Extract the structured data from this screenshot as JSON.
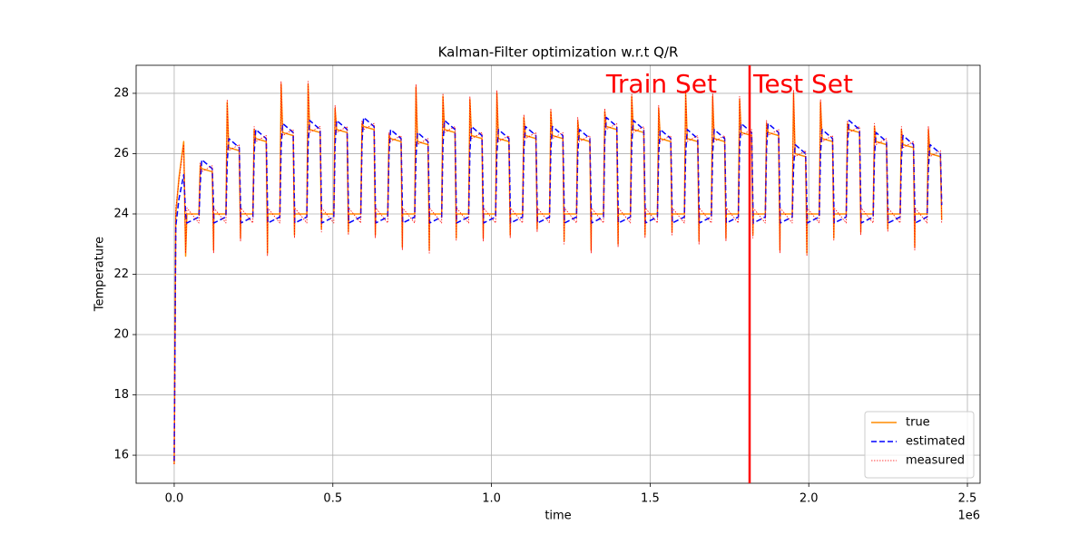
{
  "chart_data": {
    "type": "line",
    "title": "Kalman-Filter optimization w.r.t Q/R",
    "x_label": "time",
    "y_label": "Temperature",
    "x_offset_label": "1e6",
    "xlim": [
      -120000,
      2540000
    ],
    "ylim": [
      15.07,
      28.93
    ],
    "xticks": [
      {
        "value": 0,
        "label": "0.0"
      },
      {
        "value": 500000,
        "label": "0.5"
      },
      {
        "value": 1000000,
        "label": "1.0"
      },
      {
        "value": 1500000,
        "label": "1.5"
      },
      {
        "value": 2000000,
        "label": "2.0"
      },
      {
        "value": 2500000,
        "label": "2.5"
      }
    ],
    "yticks": [
      16,
      18,
      20,
      22,
      24,
      26,
      28
    ],
    "grid": true,
    "legend_position": "lower right",
    "split_x": 1813500,
    "split_color": "#ff0000",
    "annotations": [
      "Train Set",
      "Test Set"
    ],
    "x": [
      0,
      5000,
      15000,
      30000,
      36000,
      40000,
      78000,
      82000,
      87000,
      120000,
      124000,
      125000,
      163000,
      167000,
      172000,
      205000,
      209000,
      210000,
      248000,
      252000,
      257000,
      290000,
      294000,
      295000,
      333000,
      337000,
      342000,
      375000,
      379000,
      380000,
      418000,
      422000,
      427000,
      460000,
      464000,
      465000,
      503000,
      507000,
      512000,
      545000,
      549000,
      550000,
      588000,
      592000,
      597000,
      630000,
      634000,
      635000,
      673000,
      677000,
      682000,
      715000,
      719000,
      720000,
      758000,
      762000,
      767000,
      800000,
      804000,
      805000,
      843000,
      847000,
      852000,
      885000,
      889000,
      890000,
      928000,
      932000,
      937000,
      970000,
      974000,
      975000,
      1013000,
      1017000,
      1022000,
      1055000,
      1059000,
      1060000,
      1098000,
      1102000,
      1107000,
      1140000,
      1144000,
      1145000,
      1183000,
      1187000,
      1192000,
      1225000,
      1229000,
      1230000,
      1268000,
      1272000,
      1277000,
      1310000,
      1314000,
      1315000,
      1353000,
      1357000,
      1362000,
      1395000,
      1399000,
      1400000,
      1438000,
      1442000,
      1447000,
      1480000,
      1484000,
      1485000,
      1523000,
      1527000,
      1532000,
      1565000,
      1569000,
      1570000,
      1608000,
      1612000,
      1617000,
      1650000,
      1654000,
      1655000,
      1693000,
      1697000,
      1702000,
      1735000,
      1739000,
      1740000,
      1778000,
      1782000,
      1787000,
      1820000,
      1824000,
      1825000,
      1863000,
      1867000,
      1872000,
      1905000,
      1909000,
      1910000,
      1948000,
      1952000,
      1957000,
      1990000,
      1994000,
      1995000,
      2033000,
      2037000,
      2042000,
      2075000,
      2079000,
      2080000,
      2118000,
      2122000,
      2127000,
      2160000,
      2164000,
      2165000,
      2203000,
      2207000,
      2212000,
      2245000,
      2249000,
      2250000,
      2288000,
      2292000,
      2297000,
      2330000,
      2334000,
      2335000,
      2373000,
      2377000,
      2382000,
      2415000,
      2419000
    ],
    "series": [
      {
        "name": "true",
        "color": "#ff8c00",
        "linestyle": "solid",
        "values": [
          15.7,
          24.0,
          25.2,
          26.4,
          22.6,
          24.0,
          24.0,
          25.6,
          25.5,
          25.4,
          22.8,
          24.0,
          24.0,
          27.7,
          26.2,
          26.1,
          23.2,
          24.0,
          24.0,
          26.8,
          26.5,
          26.4,
          22.7,
          24.0,
          24.0,
          28.3,
          26.7,
          26.6,
          23.3,
          24.0,
          24.0,
          28.3,
          26.8,
          26.7,
          23.5,
          24.0,
          24.0,
          27.5,
          26.8,
          26.7,
          23.4,
          24.0,
          24.0,
          27.0,
          26.9,
          26.8,
          23.3,
          24.0,
          24.0,
          26.6,
          26.5,
          26.4,
          22.9,
          24.0,
          24.0,
          28.2,
          26.4,
          26.3,
          22.8,
          24.0,
          24.0,
          27.9,
          26.8,
          26.7,
          23.2,
          24.0,
          24.0,
          27.8,
          26.6,
          26.5,
          23.2,
          24.0,
          24.0,
          28.0,
          26.5,
          26.4,
          23.3,
          24.0,
          24.0,
          27.2,
          26.6,
          26.5,
          23.5,
          24.0,
          24.0,
          27.4,
          26.6,
          26.5,
          23.1,
          24.0,
          24.0,
          27.1,
          26.5,
          26.4,
          22.8,
          24.0,
          24.0,
          27.4,
          26.9,
          26.8,
          23.0,
          24.0,
          24.0,
          27.9,
          26.8,
          26.7,
          23.3,
          24.0,
          24.0,
          27.5,
          26.5,
          26.4,
          23.4,
          24.0,
          24.0,
          28.0,
          26.5,
          26.4,
          23.1,
          24.0,
          24.0,
          27.9,
          26.5,
          26.4,
          23.2,
          24.0,
          24.0,
          27.8,
          26.7,
          26.6,
          23.3,
          24.0,
          24.0,
          27.0,
          26.7,
          26.6,
          22.8,
          24.0,
          24.0,
          28.0,
          26.0,
          25.9,
          22.7,
          24.0,
          24.0,
          27.7,
          26.5,
          26.4,
          23.2,
          24.0,
          24.0,
          27.0,
          26.8,
          26.7,
          23.4,
          24.0,
          24.0,
          26.9,
          26.4,
          26.3,
          23.5,
          24.0,
          24.0,
          26.8,
          26.3,
          26.2,
          22.9,
          24.0,
          24.0,
          26.8,
          26.0,
          25.9,
          23.8
        ]
      },
      {
        "name": "estimated",
        "color": "#0000ff",
        "linestyle": "dashed",
        "values": [
          15.8,
          23.6,
          24.5,
          25.3,
          24.0,
          23.7,
          23.9,
          25.0,
          25.8,
          25.5,
          24.3,
          23.7,
          23.9,
          25.7,
          26.5,
          26.2,
          24.3,
          23.7,
          23.9,
          26.0,
          26.8,
          26.5,
          24.3,
          23.7,
          23.9,
          26.2,
          27.0,
          26.7,
          24.3,
          23.7,
          23.9,
          26.3,
          27.1,
          26.8,
          24.3,
          23.7,
          23.9,
          26.3,
          27.1,
          26.8,
          24.3,
          23.7,
          23.9,
          26.4,
          27.2,
          26.9,
          24.3,
          23.7,
          23.9,
          26.0,
          26.8,
          26.5,
          24.3,
          23.7,
          23.9,
          25.9,
          26.7,
          26.4,
          24.3,
          23.7,
          23.9,
          26.3,
          27.1,
          26.8,
          24.3,
          23.7,
          23.9,
          26.1,
          26.9,
          26.6,
          24.3,
          23.7,
          23.9,
          26.0,
          26.8,
          26.5,
          24.3,
          23.7,
          23.9,
          26.1,
          26.9,
          26.6,
          24.3,
          23.7,
          23.9,
          26.1,
          26.9,
          26.6,
          24.3,
          23.7,
          23.9,
          26.0,
          26.8,
          26.5,
          24.3,
          23.7,
          23.9,
          26.4,
          27.2,
          26.9,
          24.3,
          23.7,
          23.9,
          26.3,
          27.1,
          26.8,
          24.3,
          23.7,
          23.9,
          26.0,
          26.8,
          26.5,
          24.3,
          23.7,
          23.9,
          26.0,
          26.8,
          26.5,
          24.3,
          23.7,
          23.9,
          26.0,
          26.8,
          26.5,
          24.3,
          23.7,
          23.9,
          26.2,
          27.0,
          26.7,
          24.3,
          23.7,
          23.9,
          26.2,
          27.0,
          26.7,
          24.3,
          23.7,
          23.9,
          25.5,
          26.3,
          26.0,
          24.3,
          23.7,
          23.9,
          26.0,
          26.8,
          26.5,
          24.3,
          23.7,
          23.9,
          26.3,
          27.1,
          26.8,
          24.3,
          23.7,
          23.9,
          25.9,
          26.7,
          26.4,
          24.3,
          23.7,
          23.9,
          25.8,
          26.6,
          26.3,
          24.3,
          23.7,
          23.9,
          25.5,
          26.3,
          26.0,
          24.3
        ]
      },
      {
        "name": "measured",
        "color": "#ff0000",
        "linestyle": "dotted",
        "values": [
          15.7,
          24.2,
          25.1,
          26.3,
          22.7,
          24.2,
          23.7,
          25.7,
          25.4,
          25.6,
          22.7,
          24.2,
          23.7,
          27.8,
          26.1,
          26.3,
          23.1,
          24.2,
          23.7,
          26.9,
          26.4,
          26.6,
          22.6,
          24.2,
          23.7,
          28.4,
          26.6,
          26.8,
          23.2,
          24.2,
          23.7,
          28.4,
          26.7,
          26.9,
          23.4,
          24.2,
          23.7,
          27.6,
          26.7,
          26.9,
          23.3,
          24.2,
          23.7,
          27.1,
          26.8,
          27.0,
          23.2,
          24.2,
          23.7,
          26.7,
          26.4,
          26.6,
          22.8,
          24.2,
          23.7,
          28.3,
          26.3,
          26.5,
          22.7,
          24.2,
          23.7,
          28.0,
          26.7,
          26.9,
          23.1,
          24.2,
          23.7,
          27.9,
          26.5,
          26.7,
          23.1,
          24.2,
          23.7,
          28.1,
          26.4,
          26.6,
          23.2,
          24.2,
          23.7,
          27.3,
          26.5,
          26.7,
          23.4,
          24.2,
          23.7,
          27.5,
          26.5,
          26.7,
          23.0,
          24.2,
          23.7,
          27.2,
          26.4,
          26.6,
          22.7,
          24.2,
          23.7,
          27.5,
          26.8,
          27.0,
          22.9,
          24.2,
          23.7,
          28.0,
          26.7,
          26.9,
          23.2,
          24.2,
          23.7,
          27.6,
          26.4,
          26.6,
          23.3,
          24.2,
          23.7,
          28.1,
          26.4,
          26.6,
          23.0,
          24.2,
          23.7,
          28.0,
          26.4,
          26.6,
          23.1,
          24.2,
          23.7,
          27.9,
          26.6,
          26.8,
          23.2,
          24.2,
          23.7,
          27.1,
          26.6,
          26.8,
          22.7,
          24.2,
          23.7,
          28.1,
          25.9,
          26.1,
          22.6,
          24.2,
          23.7,
          27.8,
          26.4,
          26.6,
          23.1,
          24.2,
          23.7,
          27.1,
          26.7,
          26.9,
          23.3,
          24.2,
          23.7,
          27.0,
          26.3,
          26.5,
          23.4,
          24.2,
          23.7,
          26.9,
          26.2,
          26.4,
          22.8,
          24.2,
          23.7,
          26.9,
          25.9,
          26.1,
          23.7
        ]
      }
    ]
  }
}
